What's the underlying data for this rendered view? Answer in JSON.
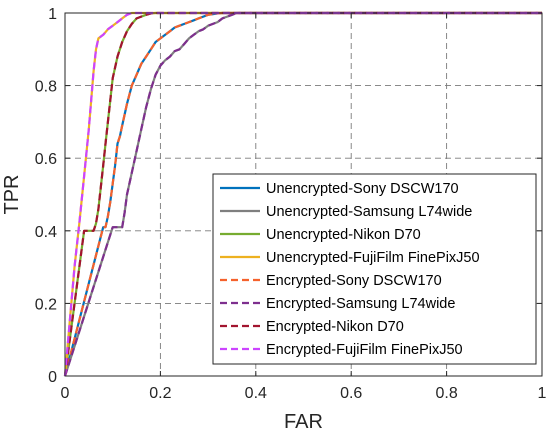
{
  "chart_data": {
    "type": "line",
    "title": "",
    "xlabel": "FAR",
    "ylabel": "TPR",
    "xlim": [
      0,
      1
    ],
    "ylim": [
      0,
      1
    ],
    "xticks": [
      "0",
      "0.2",
      "0.4",
      "0.6",
      "0.8",
      "1"
    ],
    "yticks": [
      "0",
      "0.2",
      "0.4",
      "0.6",
      "0.8",
      "1"
    ],
    "grid": true,
    "legend_position": "lower-right",
    "series": [
      {
        "name": "Unencrypted-Sony DSCW170",
        "color": "#0072BD",
        "dash": "solid",
        "x": [
          0,
          0.08,
          0.085,
          0.09,
          0.095,
          0.1,
          0.105,
          0.11,
          0.115,
          0.12,
          0.125,
          0.13,
          0.14,
          0.15,
          0.16,
          0.17,
          0.18,
          0.19,
          0.2,
          0.21,
          0.22,
          0.23,
          0.24,
          0.25,
          0.26,
          0.27,
          0.28,
          0.29,
          0.3,
          0.31,
          0.32,
          0.33,
          0.34,
          1
        ],
        "y": [
          0,
          0.41,
          0.41,
          0.44,
          0.48,
          0.53,
          0.58,
          0.64,
          0.66,
          0.69,
          0.72,
          0.75,
          0.8,
          0.83,
          0.86,
          0.88,
          0.9,
          0.92,
          0.93,
          0.94,
          0.95,
          0.96,
          0.965,
          0.97,
          0.975,
          0.98,
          0.985,
          0.99,
          0.995,
          0.997,
          0.999,
          1,
          1,
          1
        ]
      },
      {
        "name": "Unencrypted-Samsung L74wide",
        "color": "#7F7F7F",
        "dash": "solid",
        "x": [
          0,
          0.1,
          0.11,
          0.12,
          0.125,
          0.13,
          0.14,
          0.15,
          0.16,
          0.17,
          0.18,
          0.19,
          0.2,
          0.21,
          0.22,
          0.23,
          0.24,
          0.25,
          0.26,
          0.27,
          0.28,
          0.29,
          0.3,
          0.31,
          0.32,
          0.33,
          0.34,
          0.35,
          0.36,
          0.37,
          1
        ],
        "y": [
          0,
          0.41,
          0.41,
          0.41,
          0.45,
          0.5,
          0.56,
          0.62,
          0.68,
          0.74,
          0.79,
          0.83,
          0.855,
          0.87,
          0.88,
          0.895,
          0.9,
          0.915,
          0.93,
          0.94,
          0.95,
          0.955,
          0.965,
          0.97,
          0.975,
          0.985,
          0.99,
          0.995,
          1,
          1,
          1
        ]
      },
      {
        "name": "Unencrypted-Nikon D70",
        "color": "#77AC30",
        "dash": "solid",
        "x": [
          0,
          0.04,
          0.06,
          0.065,
          0.07,
          0.075,
          0.08,
          0.085,
          0.09,
          0.095,
          0.1,
          0.11,
          0.12,
          0.13,
          0.14,
          0.15,
          0.16,
          0.17,
          0.18,
          0.19,
          0.2,
          1
        ],
        "y": [
          0,
          0.4,
          0.4,
          0.42,
          0.46,
          0.52,
          0.58,
          0.64,
          0.7,
          0.76,
          0.82,
          0.88,
          0.92,
          0.95,
          0.97,
          0.985,
          0.99,
          0.995,
          0.999,
          1,
          1,
          1
        ]
      },
      {
        "name": "Unencrypted-FujiFilm FinePixJ50",
        "color": "#EDB120",
        "dash": "solid",
        "x": [
          0,
          0.02,
          0.03,
          0.04,
          0.05,
          0.055,
          0.06,
          0.065,
          0.07,
          0.08,
          0.09,
          0.1,
          0.11,
          0.12,
          0.13,
          0.14,
          0.15,
          1
        ],
        "y": [
          0,
          0.3,
          0.42,
          0.55,
          0.68,
          0.76,
          0.84,
          0.9,
          0.93,
          0.94,
          0.955,
          0.965,
          0.975,
          0.985,
          0.995,
          1,
          1,
          1
        ]
      },
      {
        "name": "Encrypted-Sony DSCW170",
        "color": "#F5622C",
        "dash": "dashed",
        "x": [
          0,
          0.08,
          0.085,
          0.09,
          0.095,
          0.1,
          0.105,
          0.11,
          0.115,
          0.12,
          0.125,
          0.13,
          0.14,
          0.15,
          0.16,
          0.17,
          0.18,
          0.19,
          0.2,
          0.21,
          0.22,
          0.23,
          0.24,
          0.25,
          0.26,
          0.27,
          0.28,
          0.29,
          0.3,
          0.31,
          0.32,
          0.33,
          0.34,
          1
        ],
        "y": [
          0,
          0.41,
          0.41,
          0.44,
          0.48,
          0.53,
          0.58,
          0.64,
          0.66,
          0.69,
          0.72,
          0.75,
          0.8,
          0.83,
          0.86,
          0.88,
          0.9,
          0.92,
          0.93,
          0.94,
          0.95,
          0.96,
          0.965,
          0.97,
          0.975,
          0.98,
          0.985,
          0.99,
          0.995,
          0.997,
          0.999,
          1,
          1,
          1
        ]
      },
      {
        "name": "Encrypted-Samsung L74wide",
        "color": "#7E2F8E",
        "dash": "dashed",
        "x": [
          0,
          0.1,
          0.11,
          0.12,
          0.125,
          0.13,
          0.14,
          0.15,
          0.16,
          0.17,
          0.18,
          0.19,
          0.2,
          0.21,
          0.22,
          0.23,
          0.24,
          0.25,
          0.26,
          0.27,
          0.28,
          0.29,
          0.3,
          0.31,
          0.32,
          0.33,
          0.34,
          0.35,
          0.36,
          0.37,
          1
        ],
        "y": [
          0,
          0.41,
          0.41,
          0.41,
          0.45,
          0.5,
          0.56,
          0.62,
          0.68,
          0.74,
          0.79,
          0.83,
          0.855,
          0.87,
          0.88,
          0.895,
          0.9,
          0.915,
          0.93,
          0.94,
          0.95,
          0.955,
          0.965,
          0.97,
          0.975,
          0.985,
          0.99,
          0.995,
          1,
          1,
          1
        ]
      },
      {
        "name": "Encrypted-Nikon D70",
        "color": "#A2142F",
        "dash": "dashed",
        "x": [
          0,
          0.04,
          0.06,
          0.065,
          0.07,
          0.075,
          0.08,
          0.085,
          0.09,
          0.095,
          0.1,
          0.11,
          0.12,
          0.13,
          0.14,
          0.15,
          0.16,
          0.17,
          0.18,
          0.19,
          0.2,
          1
        ],
        "y": [
          0,
          0.4,
          0.4,
          0.42,
          0.46,
          0.52,
          0.58,
          0.64,
          0.7,
          0.76,
          0.82,
          0.88,
          0.92,
          0.95,
          0.97,
          0.985,
          0.99,
          0.995,
          0.999,
          1,
          1,
          1
        ]
      },
      {
        "name": "Encrypted-FujiFilm FinePixJ50",
        "color": "#CC44FF",
        "dash": "dashed",
        "x": [
          0,
          0.02,
          0.03,
          0.04,
          0.05,
          0.055,
          0.06,
          0.065,
          0.07,
          0.08,
          0.09,
          0.1,
          0.11,
          0.12,
          0.13,
          0.14,
          0.15,
          1
        ],
        "y": [
          0,
          0.3,
          0.42,
          0.55,
          0.68,
          0.76,
          0.84,
          0.9,
          0.93,
          0.94,
          0.955,
          0.965,
          0.975,
          0.985,
          0.995,
          1,
          1,
          1
        ]
      }
    ]
  }
}
